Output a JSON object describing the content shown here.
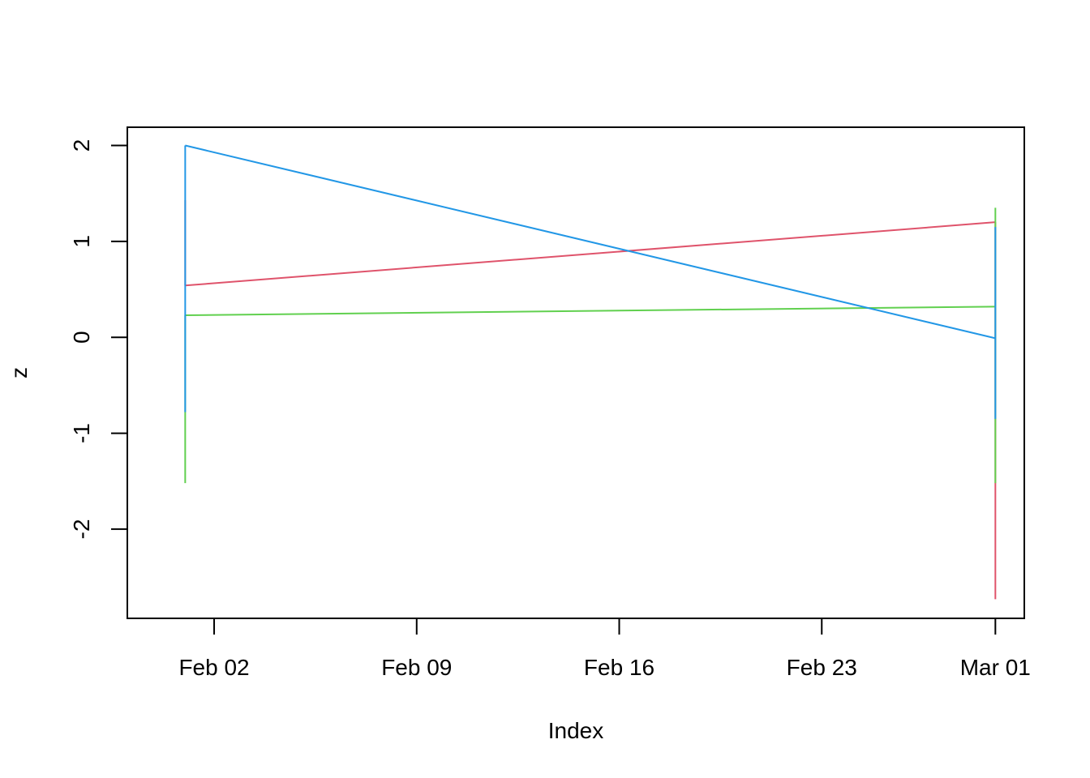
{
  "chart_data": {
    "type": "line",
    "title": "",
    "xlabel": "Index",
    "ylabel": "z",
    "xlim": [
      "2013-01-30",
      "2013-03-02"
    ],
    "ylim": [
      -2.93,
      2.19
    ],
    "x_ticks": [
      {
        "date": "2013-02-02",
        "label": "Feb 02"
      },
      {
        "date": "2013-02-09",
        "label": "Feb 09"
      },
      {
        "date": "2013-02-16",
        "label": "Feb 16"
      },
      {
        "date": "2013-02-23",
        "label": "Feb 23"
      },
      {
        "date": "2013-03-01",
        "label": "Mar 01"
      }
    ],
    "y_ticks": [
      {
        "value": 2,
        "label": "2"
      },
      {
        "value": 1,
        "label": "1"
      },
      {
        "value": 0,
        "label": "0"
      },
      {
        "value": -1,
        "label": "-1"
      },
      {
        "value": -2,
        "label": "-2"
      }
    ],
    "x": [
      "2013-02-01",
      "2013-03-01"
    ],
    "series": [
      {
        "color": "#DF536B",
        "values": [
          0.54,
          1.2
        ],
        "range_low": [
          0.54,
          -2.73
        ],
        "range_high": [
          1.43,
          1.2
        ]
      },
      {
        "color": "#61D04F",
        "values": [
          0.23,
          0.32
        ],
        "range_low": [
          -1.52,
          -1.52
        ],
        "range_high": [
          0.23,
          1.35
        ]
      },
      {
        "color": "#2297E6",
        "values": [
          2.0,
          -0.01
        ],
        "range_low": [
          -0.78,
          -0.85
        ],
        "range_high": [
          2.0,
          1.15
        ]
      }
    ],
    "grid": false,
    "legend": "none"
  }
}
